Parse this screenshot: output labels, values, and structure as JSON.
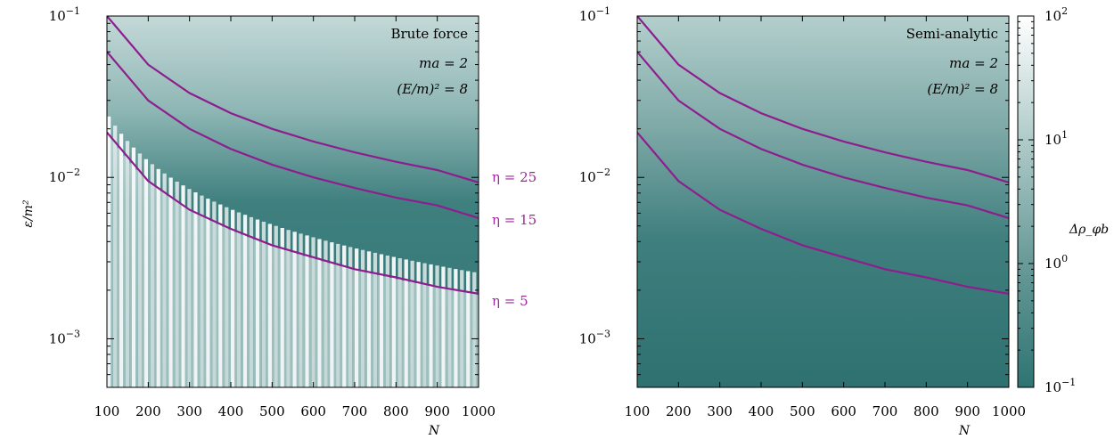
{
  "colors": {
    "curve": "#8e1d8e",
    "eta_label": "#9b2a99",
    "teal_dark": "#2e7473",
    "teal_light": "#c8dcdb",
    "white": "#f4f8f8"
  },
  "chart_data": [
    {
      "type": "heatmap",
      "title": "Brute force",
      "annotations": [
        "ma = 2",
        "(E/m)² = 8"
      ],
      "xlabel": "N",
      "ylabel": "ε/m²",
      "xlim": [
        100,
        1000
      ],
      "ylim": [
        0.0005,
        0.1
      ],
      "yscale": "log",
      "xticks": [
        "100",
        "200",
        "300",
        "400",
        "500",
        "600",
        "700",
        "800",
        "900",
        "1000"
      ],
      "yticks": [
        {
          "value": 0.1,
          "base": "10",
          "exp": "−1"
        },
        {
          "value": 0.01,
          "base": "10",
          "exp": "−2"
        },
        {
          "value": 0.001,
          "base": "10",
          "exp": "−3"
        }
      ],
      "series": [
        {
          "name": "η = 25",
          "x": [
            100,
            200,
            300,
            400,
            500,
            600,
            700,
            800,
            900,
            1000
          ],
          "y": [
            0.1,
            0.05,
            0.0333,
            0.025,
            0.02,
            0.0167,
            0.0143,
            0.0125,
            0.0111,
            0.0093
          ]
        },
        {
          "name": "η = 15",
          "x": [
            100,
            200,
            300,
            400,
            500,
            600,
            700,
            800,
            900,
            1000
          ],
          "y": [
            0.06,
            0.03,
            0.02,
            0.015,
            0.012,
            0.01,
            0.0086,
            0.0075,
            0.0067,
            0.0056
          ]
        },
        {
          "name": "η = 5",
          "x": [
            100,
            200,
            300,
            400,
            500,
            600,
            700,
            800,
            900,
            1000
          ],
          "y": [
            0.019,
            0.0095,
            0.0063,
            0.0048,
            0.0038,
            0.0032,
            0.0027,
            0.0024,
            0.0021,
            0.0019
          ]
        }
      ]
    },
    {
      "type": "heatmap",
      "title": "Semi-analytic",
      "annotations": [
        "ma = 2",
        "(E/m)² = 8"
      ],
      "xlabel": "N",
      "ylabel": "",
      "xlim": [
        100,
        1000
      ],
      "ylim": [
        0.0005,
        0.1
      ],
      "yscale": "log",
      "xticks": [
        "100",
        "200",
        "300",
        "400",
        "500",
        "600",
        "700",
        "800",
        "900",
        "1000"
      ],
      "yticks": [
        {
          "value": 0.1,
          "base": "10",
          "exp": "−1"
        },
        {
          "value": 0.01,
          "base": "10",
          "exp": "−2"
        },
        {
          "value": 0.001,
          "base": "10",
          "exp": "−3"
        }
      ],
      "series": [
        {
          "name": "η = 25",
          "x": [
            100,
            200,
            300,
            400,
            500,
            600,
            700,
            800,
            900,
            1000
          ],
          "y": [
            0.1,
            0.05,
            0.0333,
            0.025,
            0.02,
            0.0167,
            0.0143,
            0.0125,
            0.0111,
            0.0093
          ]
        },
        {
          "name": "η = 15",
          "x": [
            100,
            200,
            300,
            400,
            500,
            600,
            700,
            800,
            900,
            1000
          ],
          "y": [
            0.06,
            0.03,
            0.02,
            0.015,
            0.012,
            0.01,
            0.0086,
            0.0075,
            0.0067,
            0.0056
          ]
        },
        {
          "name": "η = 5",
          "x": [
            100,
            200,
            300,
            400,
            500,
            600,
            700,
            800,
            900,
            1000
          ],
          "y": [
            0.019,
            0.0095,
            0.0063,
            0.0048,
            0.0038,
            0.0032,
            0.0027,
            0.0024,
            0.0021,
            0.0019
          ]
        }
      ],
      "colorbar": {
        "label": "Δρ_φb",
        "scale": "log",
        "range": [
          0.1,
          100
        ],
        "ticks": [
          {
            "value": 100,
            "base": "10",
            "exp": "2"
          },
          {
            "value": 10,
            "base": "10",
            "exp": "1"
          },
          {
            "value": 1,
            "base": "10",
            "exp": "0"
          },
          {
            "value": 0.1,
            "base": "10",
            "exp": "−1"
          }
        ]
      }
    }
  ]
}
